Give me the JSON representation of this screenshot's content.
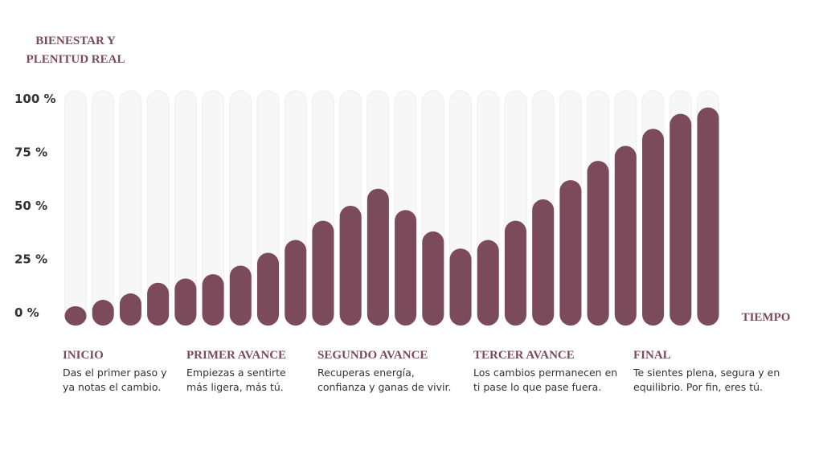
{
  "chart_data": {
    "type": "bar",
    "y_label": [
      "BIENESTAR Y",
      "PLENITUD REAL"
    ],
    "x_label": "TIEMPO",
    "categories": [
      null,
      null,
      null,
      null,
      null,
      null,
      null,
      null,
      null,
      null,
      null,
      null,
      null,
      null,
      null,
      null,
      null,
      null,
      null,
      null,
      null,
      null,
      null,
      null
    ],
    "values": [
      3,
      6,
      9,
      14,
      16,
      18,
      22,
      28,
      34,
      43,
      50,
      58,
      48,
      38,
      30,
      34,
      43,
      53,
      62,
      71,
      78,
      86,
      93,
      96
    ],
    "color": "#7b4a5b",
    "ylim": [
      0,
      100
    ],
    "yticks": [
      {
        "value": 0,
        "label": "0 %"
      },
      {
        "value": 25,
        "label": "25 %"
      },
      {
        "value": 50,
        "label": "50 %"
      },
      {
        "value": 75,
        "label": "75 %"
      },
      {
        "value": 100,
        "label": "100 %"
      }
    ],
    "grid": false,
    "phases": [
      {
        "title": "INICIO",
        "lines": [
          "Das el primer paso y",
          "ya notas el cambio."
        ]
      },
      {
        "title": "PRIMER AVANCE",
        "lines": [
          "Empiezas a sentirte",
          "más ligera, más tú."
        ]
      },
      {
        "title": "SEGUNDO AVANCE",
        "lines": [
          "Recuperas energía,",
          "confianza y ganas de vivir."
        ]
      },
      {
        "title": "TERCER AVANCE",
        "lines": [
          "Los cambios permanecen en",
          "ti pase lo que pase fuera."
        ]
      },
      {
        "title": "FINAL",
        "lines": [
          "Te sientes plena, segura y en",
          "equilibrio. Por fin, eres tú."
        ]
      }
    ]
  }
}
